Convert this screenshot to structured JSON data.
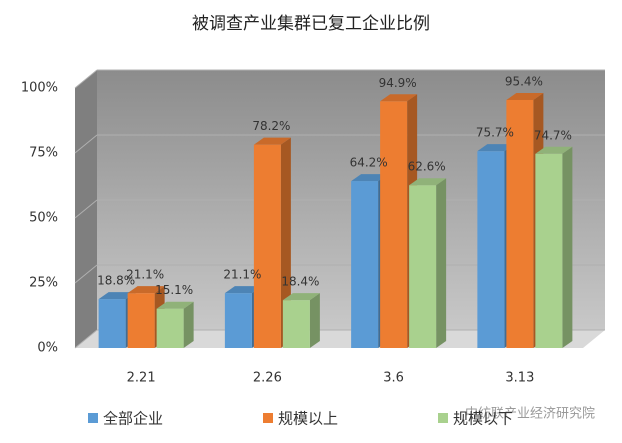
{
  "chart_data": {
    "type": "bar3d",
    "title": "被调查产业集群已复工企业比例",
    "categories": [
      "2.21",
      "2.26",
      "3.6",
      "3.13"
    ],
    "series": [
      {
        "name": "全部企业",
        "color": "#5b9bd5",
        "values": [
          18.8,
          21.1,
          64.2,
          75.7
        ],
        "value_labels": [
          "18.8%",
          "21.1%",
          "64.2%",
          "75.7%"
        ]
      },
      {
        "name": "规模以上",
        "color": "#ed7d31",
        "values": [
          21.1,
          78.2,
          94.9,
          95.4
        ],
        "value_labels": [
          "21.1%",
          "78.2%",
          "94.9%",
          "95.4%"
        ]
      },
      {
        "name": "规模以下",
        "color": "#a9d18e",
        "values": [
          15.1,
          18.4,
          62.6,
          74.7
        ],
        "value_labels": [
          "15.1%",
          "18.4%",
          "62.6%",
          "74.7%"
        ]
      }
    ],
    "ylim": [
      0,
      100
    ],
    "yticks": [
      {
        "value": 0,
        "label": "0%"
      },
      {
        "value": 25,
        "label": "25%"
      },
      {
        "value": 50,
        "label": "50%"
      },
      {
        "value": 75,
        "label": "75%"
      },
      {
        "value": 100,
        "label": "100%"
      }
    ],
    "grid": true,
    "watermark": "中纺联产业经济研究院"
  }
}
